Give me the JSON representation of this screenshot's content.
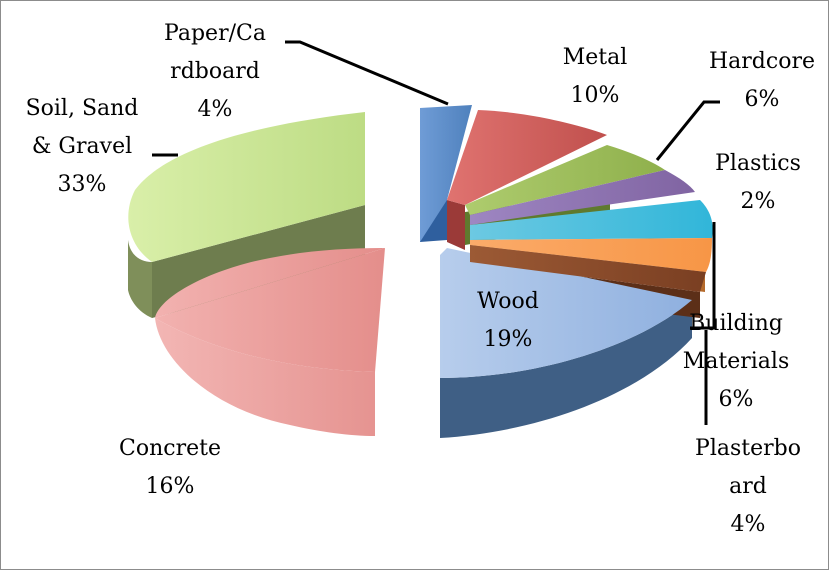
{
  "chart_data": {
    "type": "pie",
    "title": "",
    "categories": [
      "Paper/Cardboard",
      "Metal",
      "Hardcore",
      "Plastics",
      "Building Materials",
      "Plasterboard",
      "Wood",
      "Concrete",
      "Soil, Sand & Gravel"
    ],
    "values": [
      4,
      10,
      6,
      2,
      6,
      4,
      19,
      16,
      33
    ],
    "colors": [
      "#4f81bd",
      "#c0504d",
      "#9bbb59",
      "#8064a2",
      "#4bacc6",
      "#f79646",
      "#8b4a2b",
      "#95b3d7",
      "#d99694",
      "#c3d69b"
    ],
    "labels": [
      {
        "lines": [
          "Paper/Ca",
          "rdboard",
          "4%"
        ]
      },
      {
        "lines": [
          "Metal",
          "10%"
        ]
      },
      {
        "lines": [
          "Hardcore",
          "6%"
        ]
      },
      {
        "lines": [
          "Plastics",
          "2%"
        ]
      },
      {
        "lines": [
          "Building",
          "Materials",
          "6%"
        ]
      },
      {
        "lines": [
          "Plasterbo",
          "ard",
          "4%"
        ]
      },
      {
        "lines": [
          "Wood",
          "19%"
        ]
      },
      {
        "lines": [
          "Concrete",
          "16%"
        ]
      },
      {
        "lines": [
          "Soil, Sand",
          "& Gravel",
          "33%"
        ]
      }
    ],
    "legend": "none",
    "style": "3d-exploded"
  }
}
